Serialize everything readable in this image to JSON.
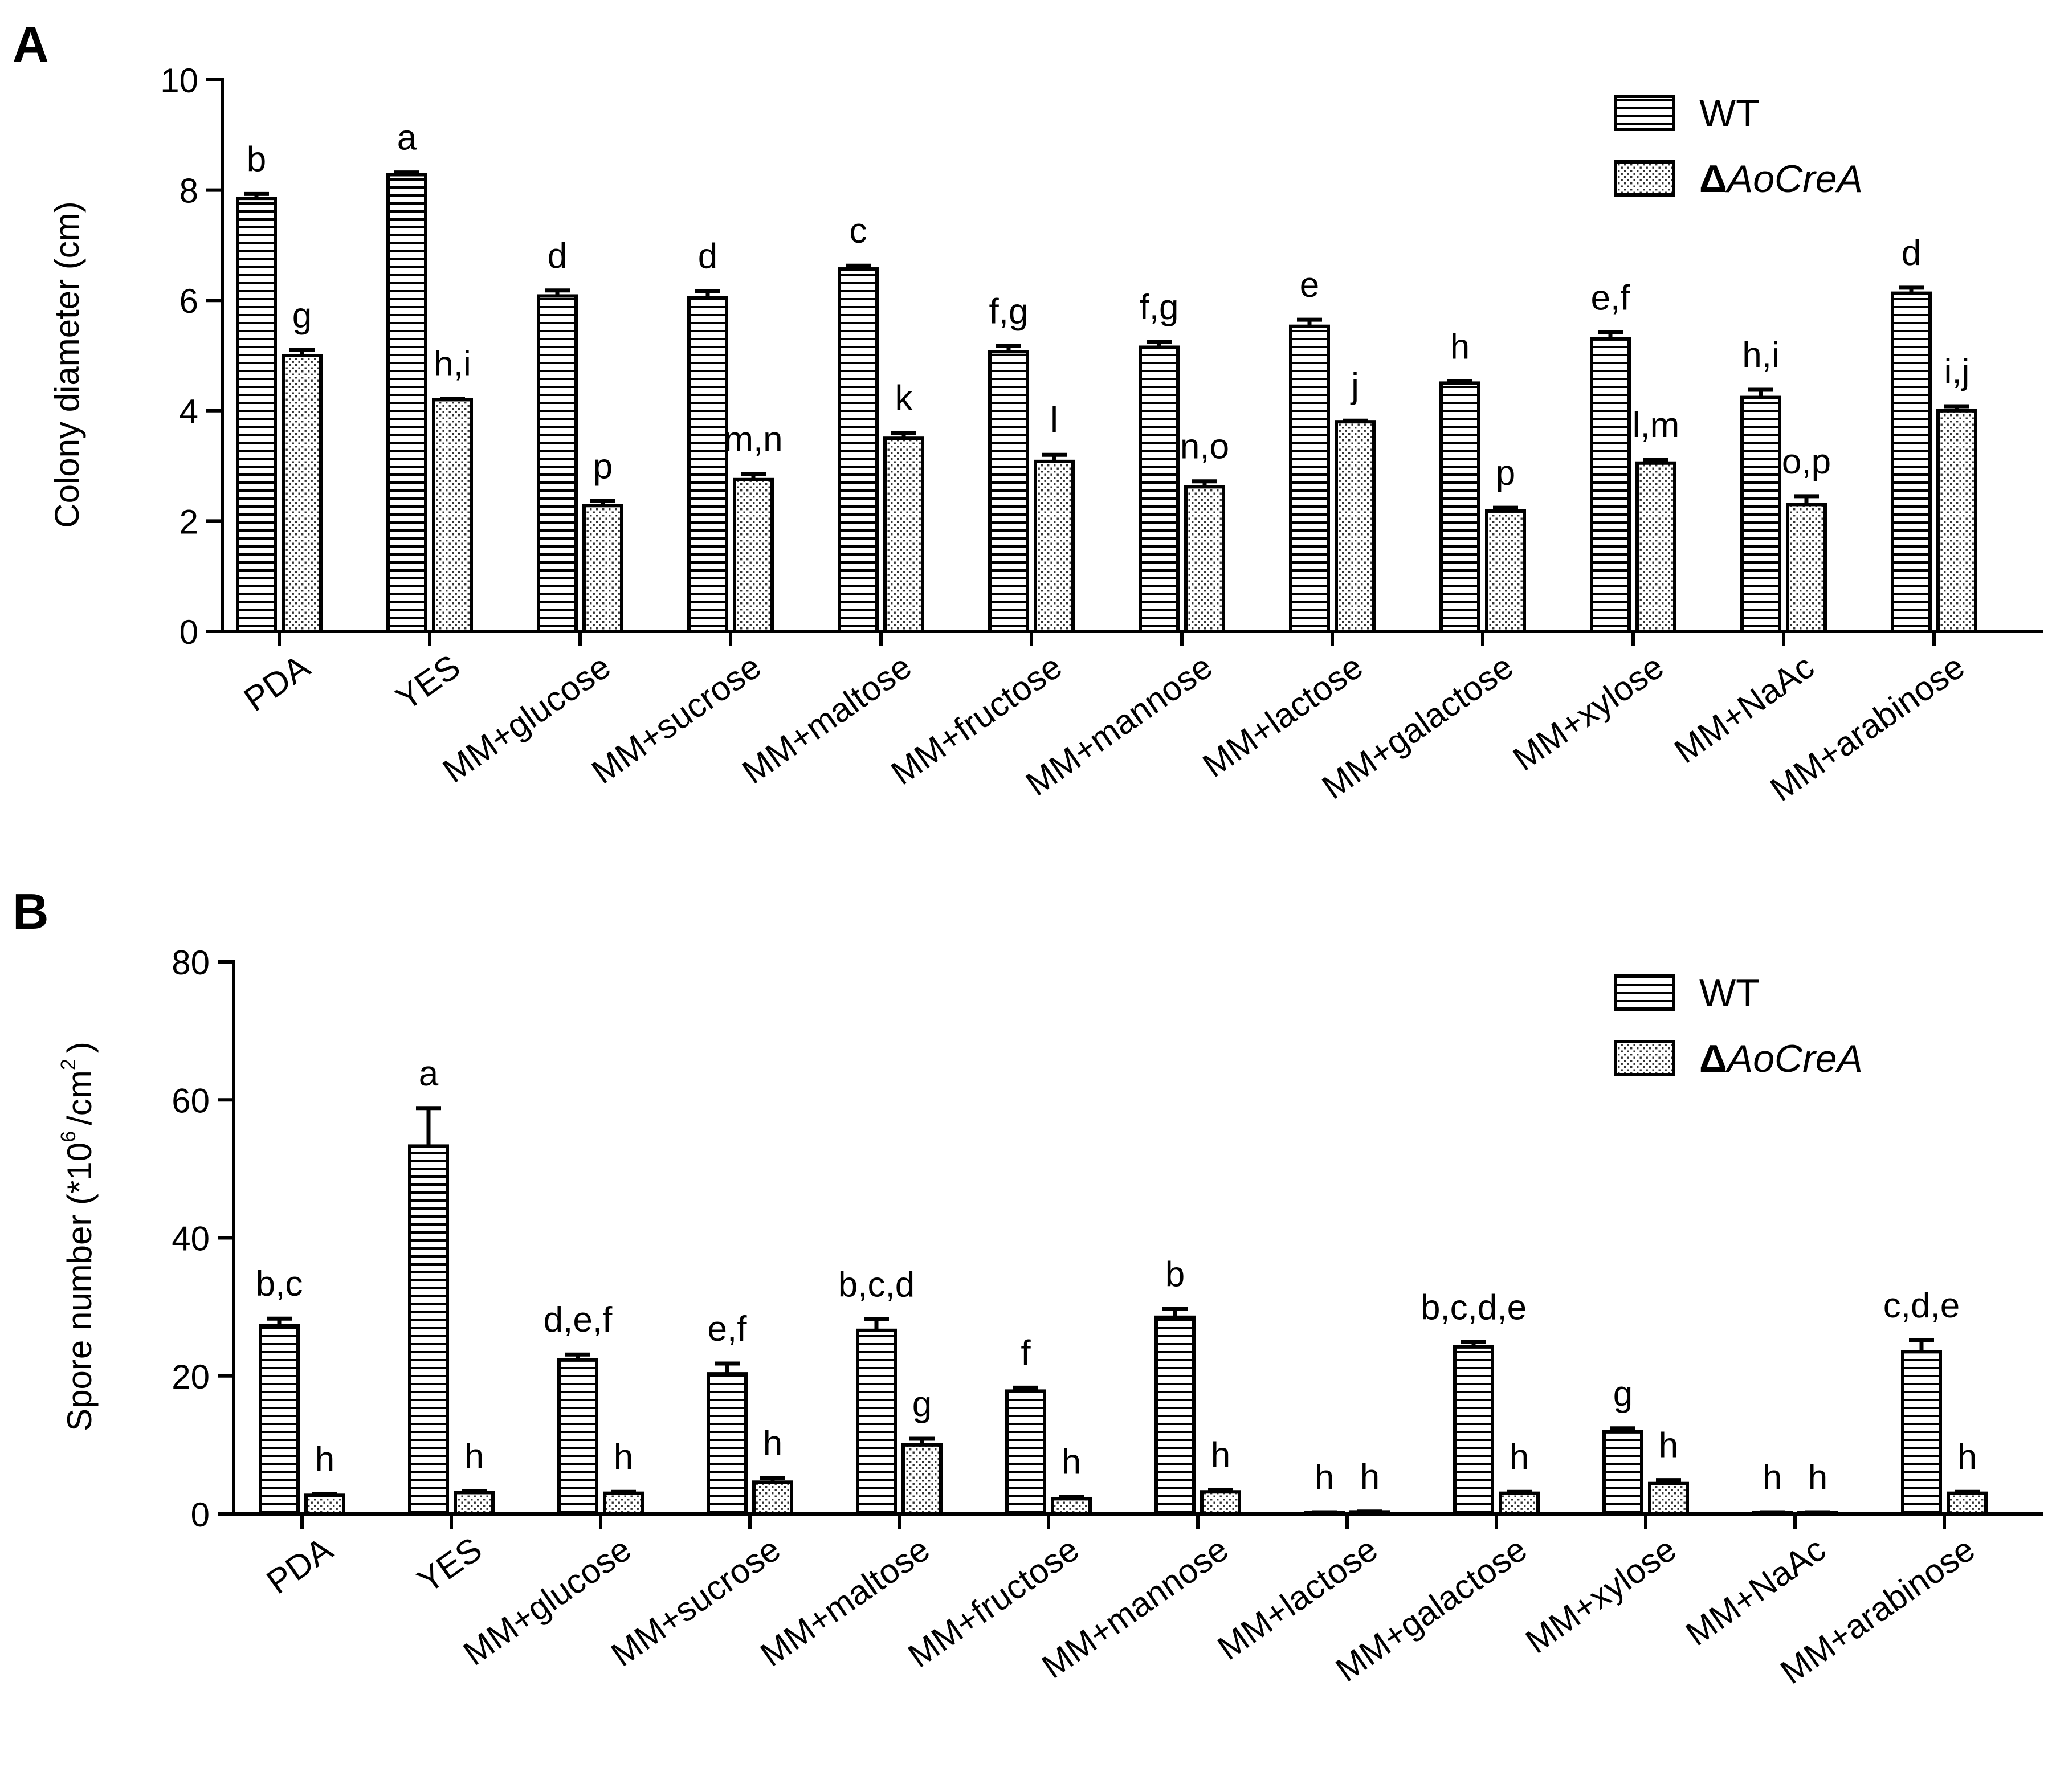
{
  "chart_data": [
    {
      "panel": "A",
      "type": "bar",
      "title": "",
      "xlabel": "",
      "ylabel": "Colony diameter (cm)",
      "ylim": [
        0,
        10
      ],
      "yticks": [
        0,
        2,
        4,
        6,
        8,
        10
      ],
      "categories": [
        "PDA",
        "YES",
        "MM+glucose",
        "MM+sucrose",
        "MM+maltose",
        "MM+fructose",
        "MM+mannose",
        "MM+lactose",
        "MM+galactose",
        "MM+xylose",
        "MM+NaAc",
        "MM+arabinose"
      ],
      "legend_position": "top-right",
      "series": [
        {
          "name": "WT",
          "pattern": "horizontal-lines",
          "values": [
            7.85,
            8.28,
            6.08,
            6.05,
            6.57,
            5.07,
            5.15,
            5.53,
            4.5,
            5.3,
            4.24,
            6.13
          ],
          "errors": [
            0.08,
            0.04,
            0.1,
            0.12,
            0.06,
            0.1,
            0.1,
            0.12,
            0.03,
            0.12,
            0.14,
            0.1
          ],
          "labels": [
            "b",
            "a",
            "d",
            "d",
            "c",
            "f,g",
            "f,g",
            "e",
            "h",
            "e,f",
            "h,i",
            "d"
          ]
        },
        {
          "name": "ΔAoCreA",
          "name_prefix": "Δ",
          "name_rest": "AoCreA",
          "pattern": "dots",
          "values": [
            5.0,
            4.2,
            2.28,
            2.75,
            3.5,
            3.08,
            2.62,
            3.8,
            2.18,
            3.05,
            2.3,
            4.0
          ],
          "errors": [
            0.1,
            0.02,
            0.08,
            0.1,
            0.1,
            0.12,
            0.1,
            0.02,
            0.06,
            0.06,
            0.15,
            0.08
          ],
          "labels": [
            "g",
            "h,i",
            "p",
            "m,n",
            "k",
            "l",
            "n,o",
            "j",
            "p",
            "l,m",
            "o,p",
            "i,j"
          ]
        }
      ]
    },
    {
      "panel": "B",
      "type": "bar",
      "title": "",
      "xlabel": "",
      "ylabel": "Spore number (*10 /cm )",
      "ylabel_main": "Spore number (*10",
      "ylabel_sup1": "6",
      "ylabel_mid": "/cm",
      "ylabel_sup2": "2",
      "ylabel_end": ")",
      "ylim": [
        0,
        80
      ],
      "yticks": [
        0,
        20,
        40,
        60,
        80
      ],
      "categories": [
        "PDA",
        "YES",
        "MM+glucose",
        "MM+sucrose",
        "MM+maltose",
        "MM+fructose",
        "MM+mannose",
        "MM+lactose",
        "MM+galactose",
        "MM+xylose",
        "MM+NaAc",
        "MM+arabinose"
      ],
      "legend_position": "top-right",
      "series": [
        {
          "name": "WT",
          "pattern": "horizontal-lines",
          "values": [
            27.3,
            53.3,
            22.3,
            20.3,
            26.6,
            17.8,
            28.5,
            0.2,
            24.2,
            11.9,
            0.2,
            23.5
          ],
          "errors": [
            1.0,
            5.5,
            0.8,
            1.5,
            1.6,
            0.5,
            1.2,
            0.05,
            0.7,
            0.5,
            0.05,
            1.7
          ],
          "labels": [
            "b,c",
            "a",
            "d,e,f",
            "e,f",
            "b,c,d",
            "f",
            "b",
            "h",
            "b,c,d,e",
            "g",
            "h",
            "c,d,e"
          ]
        },
        {
          "name": "ΔAoCreA",
          "name_prefix": "Δ",
          "name_rest": "AoCreA",
          "pattern": "dots",
          "values": [
            2.7,
            3.1,
            3.0,
            4.6,
            10.0,
            2.2,
            3.2,
            0.3,
            3.0,
            4.4,
            0.2,
            3.0
          ],
          "errors": [
            0.2,
            0.2,
            0.2,
            0.6,
            0.9,
            0.3,
            0.3,
            0.05,
            0.2,
            0.5,
            0.05,
            0.2
          ],
          "labels": [
            "h",
            "h",
            "h",
            "h",
            "g",
            "h",
            "h",
            "h",
            "h",
            "h",
            "h",
            "h"
          ]
        }
      ]
    }
  ]
}
